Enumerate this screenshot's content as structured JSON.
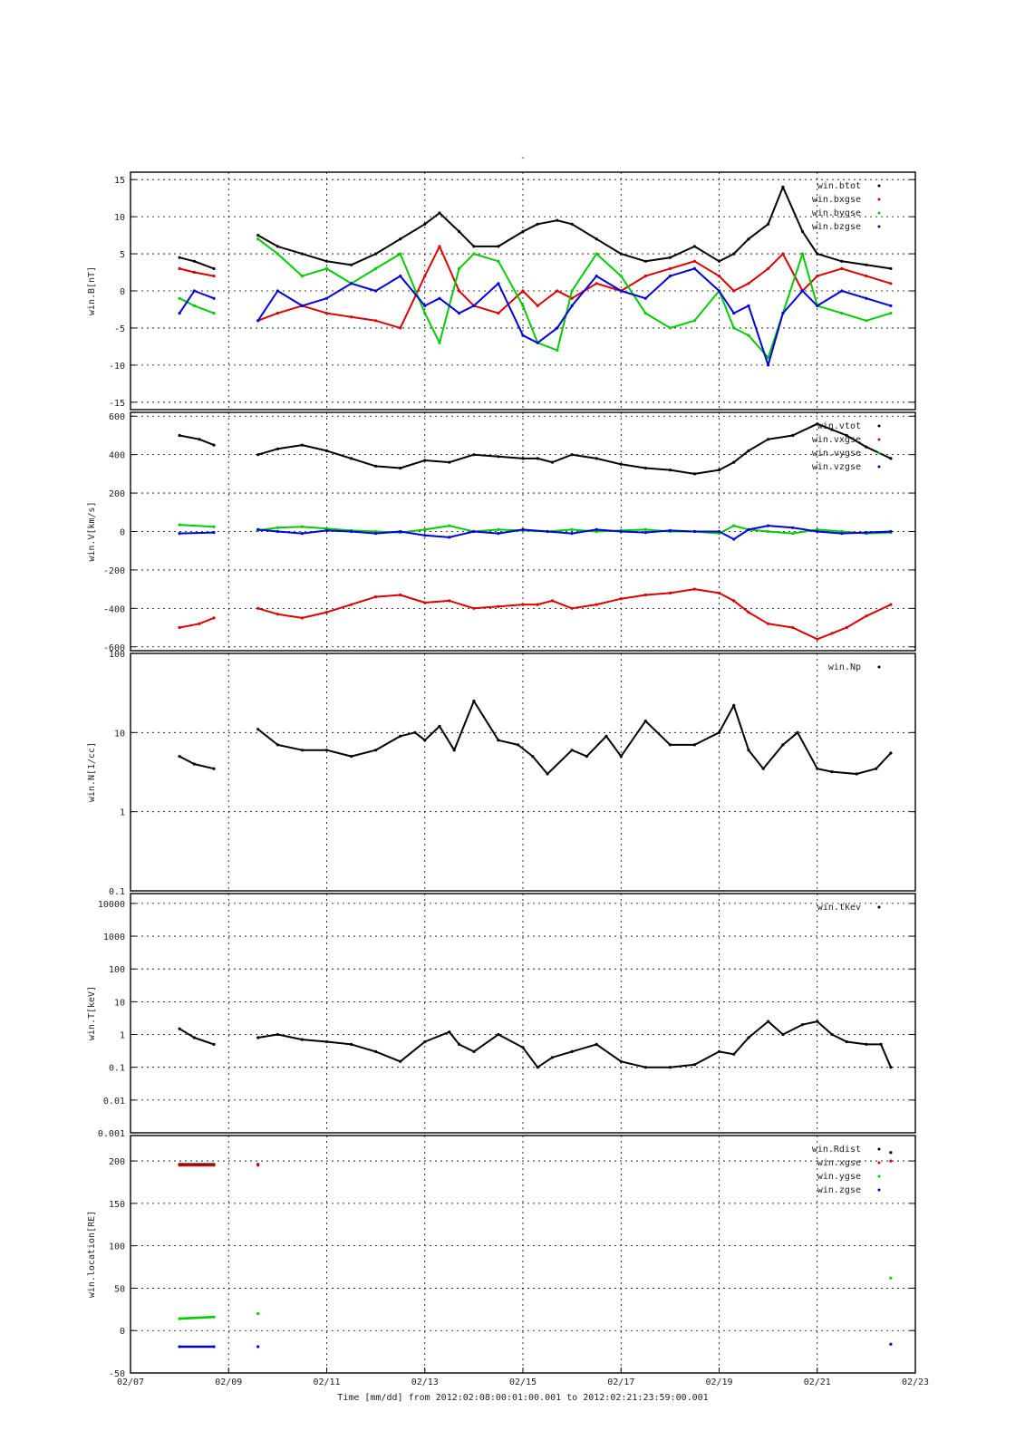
{
  "title": "-",
  "footer": {
    "xlabel": "Time [mm/dd]  from 2012:02:08:00:01:00.001  to  2012:02:21:23:59:00.001"
  },
  "x_ticks": [
    "02/07",
    "02/09",
    "02/11",
    "02/13",
    "02/15",
    "02/17",
    "02/19",
    "02/21",
    "02/23"
  ],
  "colors": {
    "black": "#000000",
    "red": "#dd0000",
    "green": "#00cc00",
    "blue": "#0000dd"
  },
  "chart_data": [
    {
      "type": "scatter",
      "ylabel": "win.B[nT]",
      "ylim": [
        -16,
        16
      ],
      "yscale": "linear",
      "yticks": [
        15,
        10,
        5,
        0,
        -5,
        -10,
        -15
      ],
      "xlim": [
        0,
        16
      ],
      "legend_position": "top-right",
      "grid": true,
      "series": [
        {
          "name": "win.btot",
          "color": "black",
          "x": [
            1,
            1.3,
            1.7,
            2.6,
            3,
            3.5,
            4,
            4.5,
            5,
            5.5,
            6,
            6.3,
            6.7,
            7,
            7.5,
            8,
            8.3,
            8.7,
            9,
            9.5,
            10,
            10.5,
            11,
            11.5,
            12,
            12.3,
            12.6,
            13,
            13.3,
            13.7,
            14,
            14.5,
            15,
            15.5
          ],
          "y": [
            4.5,
            4,
            3,
            7.5,
            6,
            5,
            4,
            3.5,
            5,
            7,
            9,
            10.5,
            8,
            6,
            6,
            8,
            9,
            9.5,
            9,
            7,
            5,
            4,
            4.5,
            6,
            4,
            5,
            7,
            9,
            14,
            8,
            5,
            4,
            3.5,
            3
          ]
        },
        {
          "name": "win.bxgse",
          "color": "red",
          "x": [
            1,
            1.3,
            1.7,
            2.6,
            3,
            3.5,
            4,
            4.5,
            5,
            5.5,
            6,
            6.3,
            6.7,
            7,
            7.5,
            8,
            8.3,
            8.7,
            9,
            9.5,
            10,
            10.5,
            11,
            11.5,
            12,
            12.3,
            12.6,
            13,
            13.3,
            13.7,
            14,
            14.5,
            15,
            15.5
          ],
          "y": [
            3,
            2.5,
            2,
            -4,
            -3,
            -2,
            -3,
            -3.5,
            -4,
            -5,
            2,
            6,
            0,
            -2,
            -3,
            0,
            -2,
            0,
            -1,
            1,
            0,
            2,
            3,
            4,
            2,
            0,
            1,
            3,
            5,
            0,
            2,
            3,
            2,
            1
          ]
        },
        {
          "name": "win.bygse",
          "color": "green",
          "x": [
            1,
            1.3,
            1.7,
            2.6,
            3,
            3.5,
            4,
            4.5,
            5,
            5.5,
            6,
            6.3,
            6.7,
            7,
            7.5,
            8,
            8.3,
            8.7,
            9,
            9.5,
            10,
            10.5,
            11,
            11.5,
            12,
            12.3,
            12.6,
            13,
            13.3,
            13.7,
            14,
            14.5,
            15,
            15.5
          ],
          "y": [
            -1,
            -2,
            -3,
            7,
            5,
            2,
            3,
            1,
            3,
            5,
            -3,
            -7,
            3,
            5,
            4,
            -2,
            -7,
            -8,
            0,
            5,
            2,
            -3,
            -5,
            -4,
            0,
            -5,
            -6,
            -9,
            -3,
            5,
            -2,
            -3,
            -4,
            -3
          ]
        },
        {
          "name": "win.bzgse",
          "color": "blue",
          "x": [
            1,
            1.3,
            1.7,
            2.6,
            3,
            3.5,
            4,
            4.5,
            5,
            5.5,
            6,
            6.3,
            6.7,
            7,
            7.5,
            8,
            8.3,
            8.7,
            9,
            9.5,
            10,
            10.5,
            11,
            11.5,
            12,
            12.3,
            12.6,
            13,
            13.3,
            13.7,
            14,
            14.5,
            15,
            15.5
          ],
          "y": [
            -3,
            0,
            -1,
            -4,
            0,
            -2,
            -1,
            1,
            0,
            2,
            -2,
            -1,
            -3,
            -2,
            1,
            -6,
            -7,
            -5,
            -2,
            2,
            0,
            -1,
            2,
            3,
            0,
            -3,
            -2,
            -10,
            -3,
            0,
            -2,
            0,
            -1,
            -2
          ]
        }
      ]
    },
    {
      "type": "scatter",
      "ylabel": "win.V[km/s]",
      "ylim": [
        -620,
        620
      ],
      "yscale": "linear",
      "yticks": [
        600,
        400,
        200,
        0,
        -200,
        -400,
        -600
      ],
      "xlim": [
        0,
        16
      ],
      "legend_position": "top-right",
      "grid": true,
      "series": [
        {
          "name": "win.vtot",
          "color": "black",
          "x": [
            1,
            1.4,
            1.7,
            2.6,
            3,
            3.5,
            4,
            4.5,
            5,
            5.5,
            6,
            6.5,
            7,
            7.5,
            8,
            8.3,
            8.6,
            9,
            9.5,
            10,
            10.5,
            11,
            11.5,
            12,
            12.3,
            12.6,
            13,
            13.5,
            14,
            14.3,
            14.6,
            15,
            15.5
          ],
          "y": [
            500,
            480,
            450,
            400,
            430,
            450,
            420,
            380,
            340,
            330,
            370,
            360,
            400,
            390,
            380,
            380,
            360,
            400,
            380,
            350,
            330,
            320,
            300,
            320,
            360,
            420,
            480,
            500,
            560,
            530,
            500,
            440,
            380
          ]
        },
        {
          "name": "win.vxgse",
          "color": "red",
          "x": [
            1,
            1.4,
            1.7,
            2.6,
            3,
            3.5,
            4,
            4.5,
            5,
            5.5,
            6,
            6.5,
            7,
            7.5,
            8,
            8.3,
            8.6,
            9,
            9.5,
            10,
            10.5,
            11,
            11.5,
            12,
            12.3,
            12.6,
            13,
            13.5,
            14,
            14.3,
            14.6,
            15,
            15.5
          ],
          "y": [
            -500,
            -480,
            -450,
            -400,
            -430,
            -450,
            -420,
            -380,
            -340,
            -330,
            -370,
            -360,
            -400,
            -390,
            -380,
            -380,
            -360,
            -400,
            -380,
            -350,
            -330,
            -320,
            -300,
            -320,
            -360,
            -420,
            -480,
            -500,
            -560,
            -530,
            -500,
            -440,
            -380
          ]
        },
        {
          "name": "win.vygse",
          "color": "green",
          "x": [
            1,
            1.7,
            2.6,
            3,
            3.5,
            4,
            4.5,
            5,
            5.5,
            6,
            6.5,
            7,
            7.5,
            8,
            8.5,
            9,
            9.5,
            10,
            10.5,
            11,
            11.5,
            12,
            12.3,
            12.6,
            13,
            13.5,
            14,
            14.5,
            15,
            15.5
          ],
          "y": [
            35,
            25,
            5,
            20,
            25,
            15,
            5,
            0,
            -5,
            10,
            30,
            0,
            10,
            5,
            0,
            10,
            0,
            5,
            10,
            0,
            0,
            -10,
            30,
            10,
            0,
            -10,
            10,
            0,
            -10,
            -5
          ]
        },
        {
          "name": "win.vzgse",
          "color": "blue",
          "x": [
            1,
            1.7,
            2.6,
            3,
            3.5,
            4,
            4.5,
            5,
            5.5,
            6,
            6.5,
            7,
            7.5,
            8,
            8.5,
            9,
            9.5,
            10,
            10.5,
            11,
            11.5,
            12,
            12.3,
            12.6,
            13,
            13.5,
            14,
            14.5,
            15,
            15.5
          ],
          "y": [
            -10,
            -5,
            10,
            0,
            -10,
            5,
            0,
            -10,
            0,
            -20,
            -30,
            0,
            -10,
            10,
            0,
            -10,
            10,
            0,
            -5,
            5,
            0,
            0,
            -40,
            10,
            30,
            20,
            0,
            -10,
            -5,
            0
          ]
        }
      ]
    },
    {
      "type": "scatter",
      "ylabel": "win.N[1/cc]",
      "ylim": [
        0.1,
        100
      ],
      "yscale": "log",
      "yticks": [
        "100",
        "10",
        "1",
        "0.1"
      ],
      "xlim": [
        0,
        16
      ],
      "legend_position": "top-right",
      "grid": true,
      "series": [
        {
          "name": "win.Np",
          "color": "black",
          "x": [
            1,
            1.3,
            1.7,
            2.6,
            3,
            3.5,
            4,
            4.5,
            5,
            5.5,
            5.8,
            6,
            6.3,
            6.6,
            7,
            7.5,
            7.9,
            8.2,
            8.5,
            9,
            9.3,
            9.7,
            10,
            10.5,
            11,
            11.5,
            12,
            12.3,
            12.6,
            12.9,
            13.3,
            13.6,
            14,
            14.3,
            14.8,
            15.2,
            15.5
          ],
          "y": [
            5,
            4,
            3.5,
            11,
            7,
            6,
            6,
            5,
            6,
            9,
            10,
            8,
            12,
            6,
            25,
            8,
            7,
            5,
            3,
            6,
            5,
            9,
            5,
            14,
            7,
            7,
            10,
            22,
            6,
            3.5,
            7,
            10,
            3.5,
            3.2,
            3,
            3.5,
            5.5
          ]
        }
      ]
    },
    {
      "type": "scatter",
      "ylabel": "win.T[keV]",
      "ylim": [
        0.001,
        20000
      ],
      "yscale": "log",
      "yticks": [
        "10000",
        "1000",
        "100",
        "10",
        "1",
        "0.1",
        "0.01",
        "0.001"
      ],
      "xlim": [
        0,
        16
      ],
      "legend_position": "top-right",
      "grid": true,
      "series": [
        {
          "name": "win.tkev",
          "color": "black",
          "x": [
            1,
            1.3,
            1.7,
            2.6,
            3,
            3.5,
            4,
            4.5,
            5,
            5.5,
            6,
            6.5,
            6.7,
            7,
            7.5,
            8,
            8.3,
            8.6,
            9,
            9.5,
            10,
            10.5,
            11,
            11.5,
            12,
            12.3,
            12.6,
            13,
            13.3,
            13.7,
            14,
            14.3,
            14.6,
            15,
            15.3,
            15.5
          ],
          "y": [
            1.5,
            0.8,
            0.5,
            0.8,
            1,
            0.7,
            0.6,
            0.5,
            0.3,
            0.15,
            0.6,
            1.2,
            0.5,
            0.3,
            1,
            0.4,
            0.1,
            0.2,
            0.3,
            0.5,
            0.15,
            0.1,
            0.1,
            0.12,
            0.3,
            0.25,
            0.8,
            2.5,
            1,
            2,
            2.5,
            1,
            0.6,
            0.5,
            0.5,
            0.1
          ]
        }
      ]
    },
    {
      "type": "scatter",
      "ylabel": "win.location[RE]",
      "ylim": [
        -50,
        230
      ],
      "yscale": "linear",
      "yticks": [
        200,
        150,
        100,
        50,
        0,
        -50
      ],
      "xlim": [
        0,
        16
      ],
      "legend_position": "top-right",
      "grid": true,
      "series": [
        {
          "name": "win.Rdist",
          "color": "black",
          "x": [
            1,
            1.7,
            2.6,
            15.5
          ],
          "y": [
            196,
            196,
            196,
            210
          ]
        },
        {
          "name": "win.xgse",
          "color": "red",
          "x": [
            1,
            1.7,
            2.6,
            15.5
          ],
          "y": [
            195,
            195,
            195,
            200
          ]
        },
        {
          "name": "win.ygse",
          "color": "green",
          "x": [
            1,
            1.7,
            2.6,
            15.5
          ],
          "y": [
            14,
            16,
            20,
            62
          ]
        },
        {
          "name": "win.zgse",
          "color": "blue",
          "x": [
            1,
            1.7,
            2.6,
            15.5
          ],
          "y": [
            -19,
            -19,
            -19,
            -16
          ]
        }
      ]
    }
  ]
}
